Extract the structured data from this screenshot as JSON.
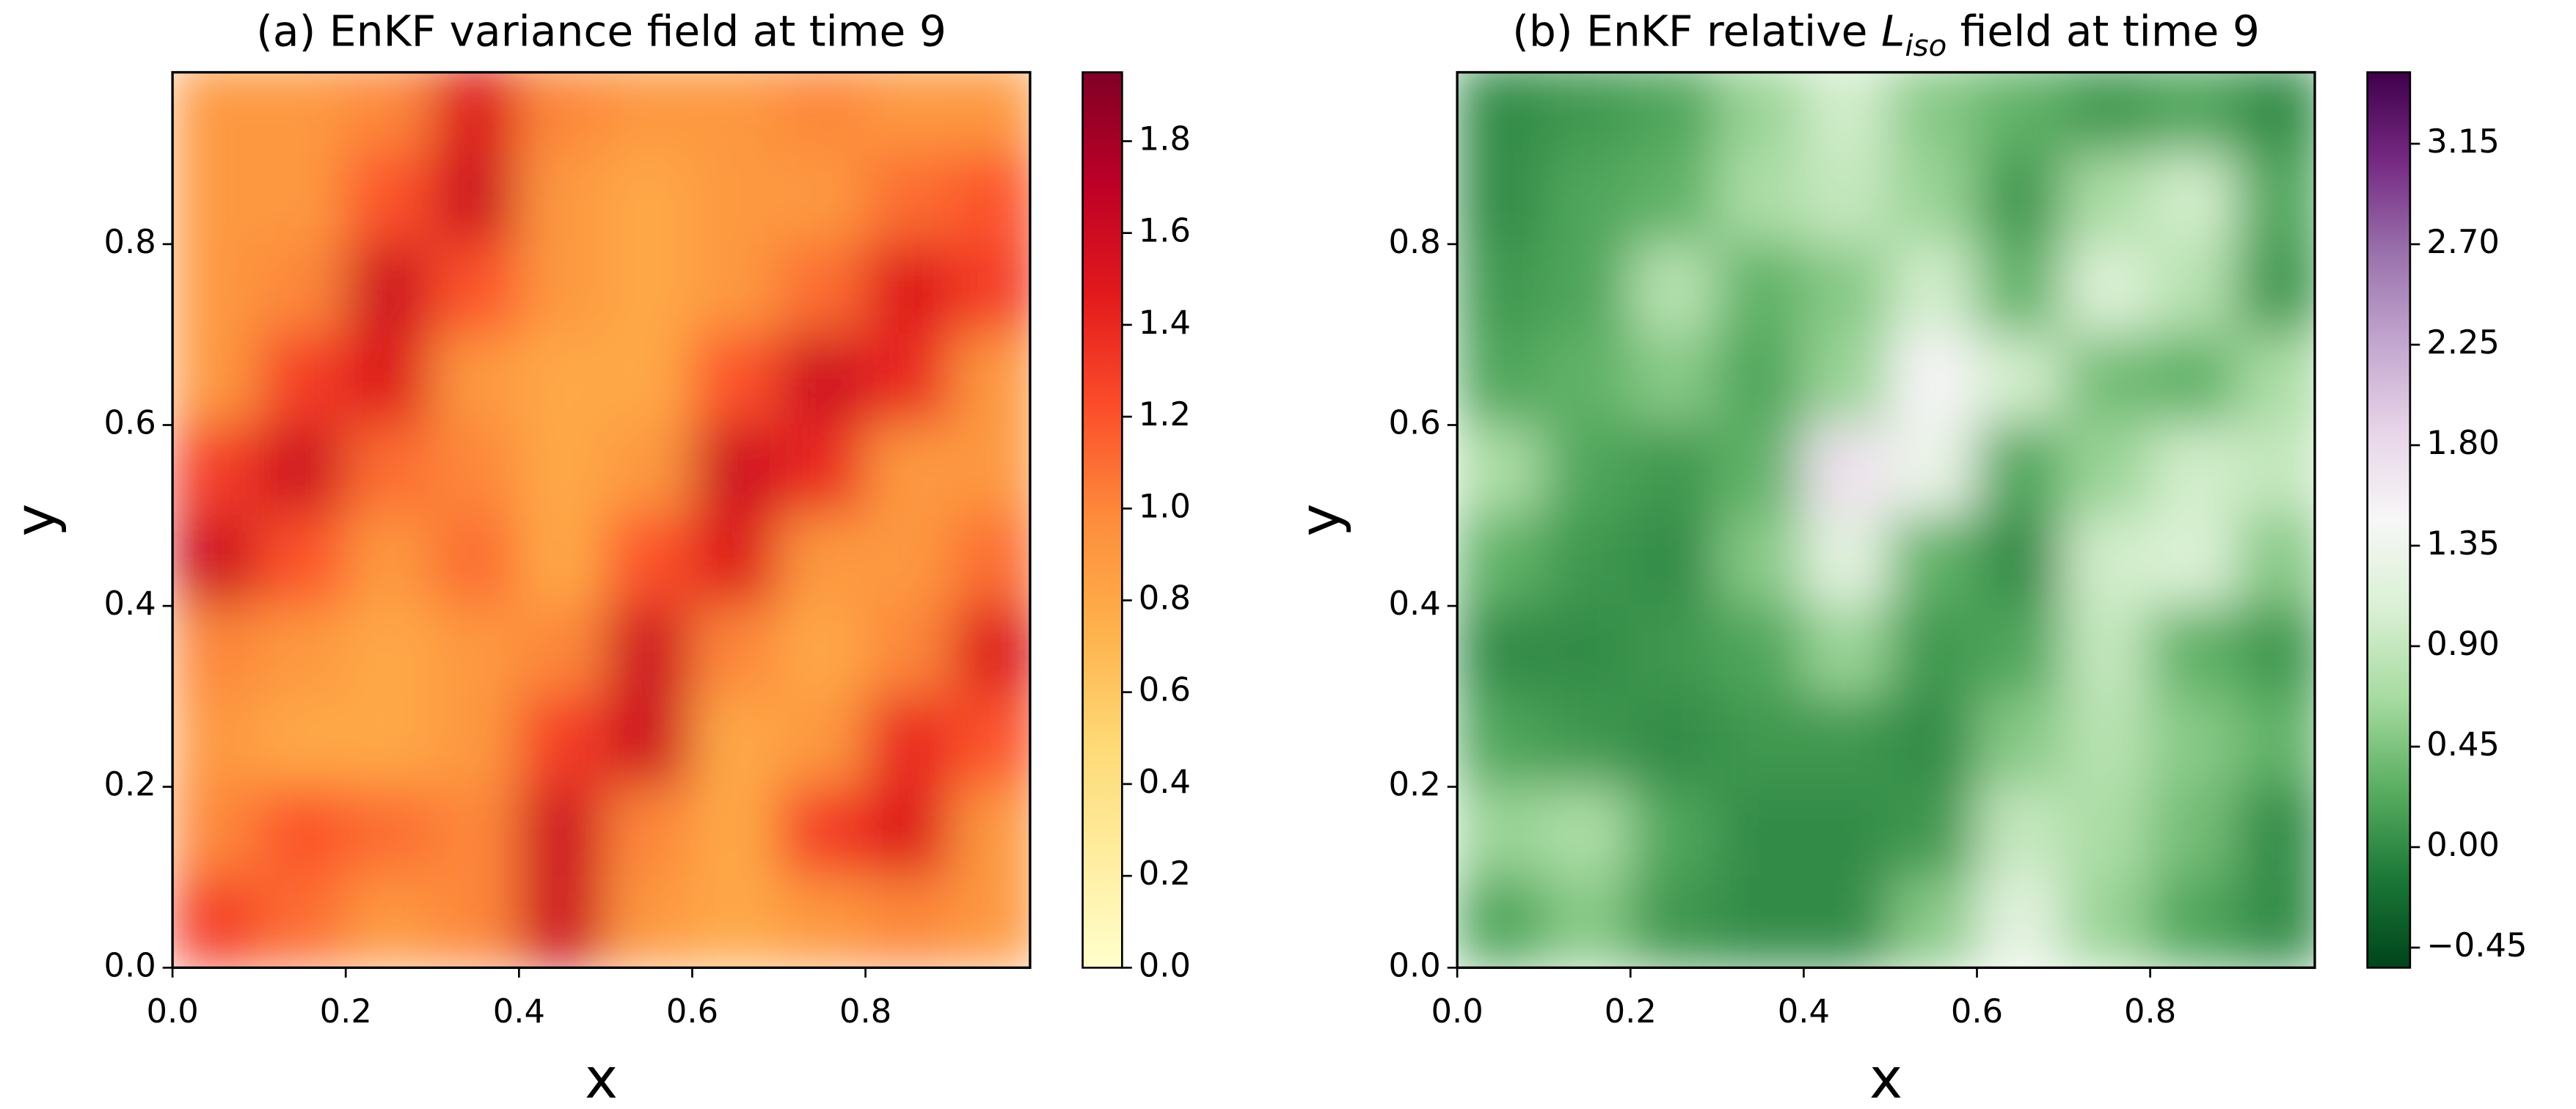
{
  "chart_data": [
    {
      "type": "heatmap",
      "title": "(a) EnKF variance field at time 9",
      "x_label": "x",
      "y_label": "y",
      "x": [
        0.05,
        0.15,
        0.25,
        0.35,
        0.45,
        0.55,
        0.65,
        0.75,
        0.85,
        0.95
      ],
      "y": [
        0.95,
        0.85,
        0.75,
        0.65,
        0.55,
        0.45,
        0.35,
        0.25,
        0.15,
        0.05
      ],
      "values": [
        [
          0.9,
          0.9,
          1.0,
          1.5,
          1.0,
          0.9,
          0.9,
          1.0,
          0.9,
          0.9
        ],
        [
          0.9,
          0.9,
          1.2,
          1.6,
          0.9,
          0.8,
          0.9,
          0.9,
          1.1,
          1.2
        ],
        [
          0.9,
          1.0,
          1.6,
          1.2,
          0.9,
          0.8,
          0.9,
          1.1,
          1.5,
          1.3
        ],
        [
          0.9,
          1.3,
          1.5,
          0.9,
          0.8,
          0.8,
          1.2,
          1.6,
          1.4,
          0.9
        ],
        [
          1.3,
          1.6,
          1.1,
          1.0,
          0.8,
          0.9,
          1.6,
          1.4,
          0.9,
          0.9
        ],
        [
          1.6,
          1.2,
          0.9,
          1.1,
          0.8,
          1.2,
          1.5,
          0.9,
          0.9,
          1.1
        ],
        [
          1.0,
          0.9,
          0.8,
          0.9,
          1.0,
          1.6,
          1.0,
          0.8,
          1.0,
          1.5
        ],
        [
          0.9,
          0.8,
          0.8,
          0.9,
          1.3,
          1.6,
          0.8,
          0.9,
          1.4,
          1.2
        ],
        [
          1.0,
          1.2,
          1.1,
          1.0,
          1.6,
          1.0,
          0.8,
          1.3,
          1.5,
          0.9
        ],
        [
          1.3,
          1.1,
          0.9,
          1.0,
          1.6,
          0.9,
          0.8,
          0.9,
          1.0,
          0.9
        ]
      ],
      "xlim": [
        0,
        0.99
      ],
      "ylim": [
        0,
        0.99
      ],
      "xticks": [
        {
          "value": 0,
          "label": "0.0"
        },
        0.2,
        0.4,
        0.6,
        0.8
      ],
      "yticks": [
        {
          "value": 0,
          "label": "0.0"
        },
        0.2,
        0.4,
        0.6,
        0.8
      ],
      "clim": [
        0,
        1.95
      ],
      "cticks": [
        {
          "value": 0,
          "label": "0.0"
        },
        0.2,
        0.4,
        0.6,
        0.8,
        {
          "value": 1,
          "label": "1.0"
        },
        1.2,
        1.4,
        1.6,
        1.8
      ],
      "colormap": [
        "#ffffcc",
        "#ffeda0",
        "#fed976",
        "#feb24c",
        "#fd8d3c",
        "#fc4e2a",
        "#e31a1c",
        "#bd0026",
        "#800026"
      ]
    },
    {
      "type": "heatmap",
      "title": {
        "before": "(b) EnKF relative ",
        "symbol": "L",
        "subscript": "iso",
        "after": " field at time 9"
      },
      "x_label": "x",
      "y_label": "y",
      "x": [
        0.05,
        0.15,
        0.25,
        0.35,
        0.45,
        0.55,
        0.65,
        0.75,
        0.85,
        0.95
      ],
      "y": [
        0.95,
        0.85,
        0.75,
        0.65,
        0.55,
        0.45,
        0.35,
        0.25,
        0.15,
        0.05
      ],
      "values": [
        [
          0.0,
          0.1,
          0.2,
          0.6,
          1.0,
          0.5,
          0.3,
          0.1,
          0.2,
          0.0
        ],
        [
          0.0,
          0.2,
          0.3,
          0.7,
          0.9,
          0.6,
          0.1,
          0.7,
          1.0,
          0.2
        ],
        [
          0.1,
          0.2,
          0.8,
          0.3,
          0.5,
          1.0,
          0.3,
          1.1,
          0.8,
          0.1
        ],
        [
          0.2,
          0.3,
          0.5,
          0.2,
          0.6,
          1.5,
          1.0,
          0.4,
          0.3,
          0.7
        ],
        [
          0.7,
          0.2,
          0.1,
          0.3,
          1.7,
          1.3,
          0.2,
          0.6,
          1.0,
          0.9
        ],
        [
          0.3,
          0.1,
          0.0,
          0.5,
          1.2,
          0.3,
          0.0,
          1.0,
          1.1,
          0.5
        ],
        [
          0.0,
          0.0,
          0.1,
          0.2,
          0.6,
          0.1,
          0.2,
          0.9,
          0.3,
          0.1
        ],
        [
          0.2,
          0.1,
          0.0,
          0.1,
          0.1,
          0.0,
          0.5,
          0.8,
          0.5,
          0.3
        ],
        [
          0.6,
          0.7,
          0.2,
          0.0,
          0.0,
          0.1,
          0.9,
          0.7,
          0.4,
          0.0
        ],
        [
          0.2,
          0.5,
          0.1,
          0.0,
          0.0,
          0.5,
          1.2,
          0.6,
          0.2,
          0.0
        ]
      ],
      "xlim": [
        0,
        0.99
      ],
      "ylim": [
        0,
        0.99
      ],
      "xticks": [
        {
          "value": 0,
          "label": "0.0"
        },
        0.2,
        0.4,
        0.6,
        0.8
      ],
      "yticks": [
        {
          "value": 0,
          "label": "0.0"
        },
        0.2,
        0.4,
        0.6,
        0.8
      ],
      "clim": [
        -0.54,
        3.47
      ],
      "cticks": [
        {
          "value": -0.45,
          "label": "−0.45"
        },
        {
          "value": 0,
          "label": "0.00"
        },
        0.45,
        {
          "value": 0.9,
          "label": "0.90"
        },
        1.35,
        {
          "value": 1.8,
          "label": "1.80"
        },
        2.25,
        {
          "value": 2.7,
          "label": "2.70"
        },
        3.15
      ],
      "colormap": [
        "#00441b",
        "#1b7837",
        "#5aae61",
        "#a6dba0",
        "#d9f0d3",
        "#f7f7f7",
        "#e7d4e8",
        "#c2a5cf",
        "#9970ab",
        "#762a83",
        "#40004b"
      ]
    }
  ]
}
